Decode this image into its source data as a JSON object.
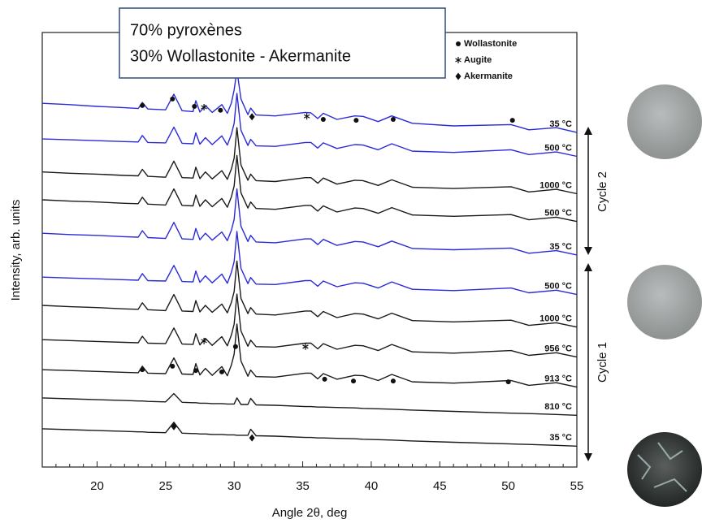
{
  "chart_data": {
    "type": "line",
    "text_box_lines": [
      "70% pyroxènes",
      "30% Wollastonite - Akermanite"
    ],
    "x_label": "Angle 2θ, deg",
    "y_label": "Intensity, arb. units",
    "annotations": [
      "Cycle 2",
      "Cycle 1"
    ],
    "xlim": [
      16,
      55
    ],
    "ylim": [
      0,
      100
    ],
    "xticks": [
      20,
      25,
      30,
      35,
      40,
      45,
      50,
      55
    ],
    "xminorticks": [
      16,
      17,
      18,
      19,
      21,
      22,
      23,
      24,
      26,
      27,
      28,
      29,
      31,
      32,
      33,
      34,
      36,
      37,
      38,
      39,
      41,
      42,
      43,
      44,
      46,
      47,
      48,
      49,
      51,
      52,
      53,
      54
    ],
    "x": [
      16,
      18,
      20,
      22,
      23,
      23.3,
      23.7,
      25,
      25.6,
      26.2,
      27,
      27.2,
      27.5,
      27.9,
      28.4,
      29.1,
      29.5,
      29.8,
      30.0,
      30.2,
      30.5,
      31.0,
      31.2,
      31.6,
      33,
      35.2,
      35.6,
      36.1,
      36.5,
      37.5,
      38.8,
      39.4,
      40.5,
      41.5,
      43,
      46,
      50.2,
      51.5,
      53.5,
      55
    ],
    "series": [
      {
        "name": "35 °C",
        "color": "#1a1a1a",
        "values": [
          8.8,
          8.6,
          8.4,
          8.2,
          8.1,
          8.1,
          8.0,
          7.9,
          10.3,
          7.8,
          7.7,
          7.7,
          7.6,
          7.6,
          7.5,
          7.5,
          7.4,
          7.4,
          7.4,
          7.3,
          7.3,
          7.3,
          8.7,
          7.2,
          7.1,
          6.8,
          6.8,
          6.7,
          6.7,
          6.6,
          6.5,
          6.4,
          6.3,
          6.2,
          6.0,
          5.7,
          5.3,
          5.2,
          5.0,
          4.8
        ]
      },
      {
        "name": "810 °C",
        "color": "#1a1a1a",
        "values": [
          15.9,
          15.7,
          15.5,
          15.3,
          15.2,
          15.2,
          15.1,
          15.0,
          16.9,
          14.9,
          14.8,
          14.8,
          14.7,
          14.7,
          14.6,
          14.6,
          14.5,
          14.5,
          14.5,
          15.9,
          14.4,
          14.4,
          15.8,
          14.3,
          14.2,
          13.9,
          13.9,
          13.8,
          13.8,
          13.7,
          13.6,
          13.5,
          13.4,
          13.3,
          13.1,
          12.8,
          12.4,
          12.3,
          12.1,
          11.9
        ]
      },
      {
        "name": "913 °C",
        "color": "#1a1a1a",
        "values": [
          22.4,
          22.2,
          22.0,
          21.8,
          21.7,
          23.2,
          21.6,
          21.5,
          25.1,
          21.4,
          21.3,
          23.8,
          21.2,
          22.7,
          21.1,
          23.1,
          21.0,
          23.5,
          26.0,
          32.9,
          24.4,
          20.9,
          22.3,
          20.8,
          20.7,
          21.6,
          21.6,
          20.3,
          21.5,
          20.2,
          21.1,
          21.0,
          19.9,
          21.3,
          19.6,
          19.3,
          19.9,
          18.8,
          19.4,
          18.4
        ]
      },
      {
        "name": "956 °C",
        "color": "#1a1a1a",
        "values": [
          29.3,
          29.1,
          28.9,
          28.7,
          28.6,
          30.1,
          28.5,
          28.4,
          32.0,
          28.3,
          28.2,
          30.7,
          28.1,
          29.6,
          28.0,
          30.0,
          27.9,
          30.4,
          32.9,
          39.8,
          31.3,
          27.8,
          29.2,
          27.7,
          27.6,
          28.5,
          28.5,
          27.2,
          28.4,
          27.1,
          28.0,
          27.9,
          26.8,
          28.2,
          26.5,
          26.2,
          26.8,
          25.7,
          26.3,
          25.3
        ]
      },
      {
        "name": "1000 °C",
        "color": "#1a1a1a",
        "values": [
          37.2,
          36.9,
          36.7,
          36.4,
          36.3,
          37.8,
          36.2,
          36.0,
          39.7,
          35.9,
          35.8,
          38.3,
          35.7,
          37.2,
          35.6,
          37.5,
          35.5,
          37.9,
          40.4,
          47.4,
          38.8,
          35.3,
          36.7,
          35.2,
          35.0,
          35.9,
          35.9,
          34.6,
          35.8,
          34.4,
          35.3,
          35.2,
          34.1,
          35.4,
          33.7,
          33.4,
          33.8,
          32.6,
          33.2,
          32.2
        ]
      },
      {
        "name": "500 °C",
        "color": "#2a2ad8",
        "values": [
          43.7,
          43.5,
          43.3,
          43.1,
          43.0,
          44.5,
          42.9,
          42.8,
          46.4,
          42.7,
          42.6,
          45.1,
          42.5,
          44.0,
          42.4,
          44.4,
          42.3,
          44.8,
          47.3,
          54.2,
          45.7,
          42.2,
          43.6,
          42.1,
          42.0,
          42.9,
          42.9,
          41.6,
          42.8,
          41.5,
          42.4,
          42.3,
          41.2,
          42.6,
          40.9,
          40.6,
          41.2,
          40.1,
          40.7,
          39.7
        ]
      },
      {
        "name": "35 °C",
        "color": "#2a2ad8",
        "values": [
          53.8,
          53.5,
          53.3,
          53.0,
          52.9,
          54.4,
          52.8,
          52.6,
          56.3,
          52.5,
          52.4,
          54.9,
          52.3,
          53.8,
          52.2,
          54.1,
          52.1,
          54.5,
          57.0,
          64.0,
          55.4,
          51.9,
          53.3,
          51.8,
          51.6,
          52.5,
          52.5,
          51.2,
          52.4,
          51.0,
          51.9,
          51.8,
          50.7,
          52.0,
          50.3,
          50.0,
          50.4,
          49.2,
          49.8,
          48.8
        ]
      },
      {
        "name": "500 °C",
        "color": "#1a1a1a",
        "values": [
          61.5,
          61.2,
          61.0,
          60.7,
          60.6,
          62.1,
          60.5,
          60.3,
          64.0,
          60.2,
          60.1,
          62.6,
          60.0,
          61.5,
          59.9,
          61.8,
          59.8,
          62.2,
          64.7,
          71.7,
          63.1,
          59.6,
          61.0,
          59.5,
          59.3,
          60.2,
          60.2,
          58.9,
          60.1,
          58.7,
          59.6,
          59.5,
          58.4,
          59.7,
          58.0,
          57.7,
          58.1,
          56.9,
          57.5,
          56.5
        ]
      },
      {
        "name": "1000 °C",
        "color": "#1a1a1a",
        "values": [
          67.9,
          67.6,
          67.4,
          67.1,
          67.0,
          68.5,
          66.9,
          66.7,
          70.4,
          66.6,
          66.5,
          69.0,
          66.4,
          67.9,
          66.3,
          68.2,
          66.2,
          68.6,
          71.1,
          78.1,
          69.5,
          66.0,
          67.4,
          65.9,
          65.7,
          66.6,
          66.6,
          65.3,
          66.5,
          65.1,
          66.0,
          65.9,
          64.8,
          66.1,
          64.4,
          64.1,
          64.5,
          63.3,
          63.9,
          62.9
        ]
      },
      {
        "name": "500 °C",
        "color": "#2a2ad8",
        "values": [
          75.5,
          75.3,
          75.1,
          74.9,
          74.8,
          76.3,
          74.7,
          74.6,
          78.2,
          74.5,
          74.4,
          76.9,
          74.3,
          75.8,
          74.2,
          76.2,
          74.1,
          76.6,
          79.1,
          86.0,
          77.5,
          74.0,
          75.4,
          73.9,
          73.8,
          74.7,
          74.7,
          73.4,
          74.6,
          73.3,
          74.2,
          74.1,
          73.0,
          74.4,
          72.7,
          72.4,
          73.0,
          71.9,
          72.5,
          71.5
        ]
      },
      {
        "name": "35 °C",
        "color": "#2a2ad8",
        "values": [
          83.7,
          83.4,
          83.0,
          82.7,
          82.5,
          83.9,
          82.4,
          82.2,
          85.8,
          82.0,
          81.8,
          84.3,
          81.7,
          83.2,
          81.6,
          83.4,
          81.4,
          83.8,
          86.8,
          91.3,
          84.7,
          81.1,
          82.6,
          81.0,
          80.8,
          81.6,
          81.5,
          80.2,
          81.4,
          80.0,
          80.8,
          80.7,
          79.5,
          80.8,
          79.1,
          78.5,
          78.8,
          77.6,
          78.1,
          77.0
        ]
      }
    ],
    "phases": [
      {
        "name": "Wollastonite",
        "marker": "circle",
        "x": [
          23.3,
          25.5,
          27.1,
          29.0,
          36.5,
          38.9,
          41.6,
          50.3,
          30.1,
          23.3,
          25.5,
          27.2,
          29.1,
          36.6,
          38.7,
          41.6,
          50.0
        ],
        "y": [
          83.2,
          84.7,
          83.0,
          82.1,
          80.0,
          79.8,
          80.0,
          79.8,
          27.7,
          22.4,
          23.2,
          22.2,
          21.9,
          20.2,
          19.8,
          19.8,
          19.6
        ]
      },
      {
        "name": "Augite",
        "marker": "asterisk",
        "x": [
          27.8,
          35.3,
          27.8,
          35.2
        ],
        "y": [
          82.8,
          80.7,
          29.0,
          27.7
        ]
      },
      {
        "name": "Akermanite",
        "marker": "diamond",
        "x": [
          31.3,
          25.6,
          31.3
        ],
        "y": [
          80.6,
          9.3,
          6.7
        ]
      }
    ],
    "legend": "upper right"
  }
}
